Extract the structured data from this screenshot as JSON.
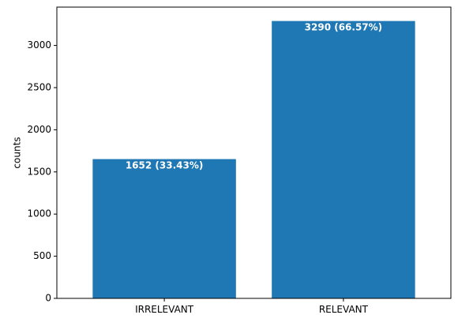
{
  "chart_data": {
    "type": "bar",
    "categories": [
      "IRRELEVANT",
      "RELEVANT"
    ],
    "values": [
      1652,
      3290
    ],
    "data_labels": [
      "1652 (33.43%)",
      "3290 (66.57%)"
    ],
    "xlabel": "",
    "ylabel": "counts",
    "ylim": [
      0,
      3454.9
    ],
    "yticks": [
      0,
      500,
      1000,
      1500,
      2000,
      2500,
      3000
    ],
    "grid": false,
    "legend": "none",
    "bar_color": "#1f77b4"
  }
}
